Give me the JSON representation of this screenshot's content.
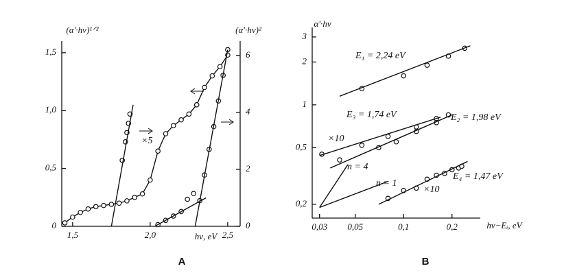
{
  "chart_data": [
    {
      "type": "line",
      "title": "A",
      "xlabel": "hν, eV",
      "ylabel": "(α′·hν)¹ᐟ²",
      "y2label": "(α′·hν)²",
      "xlim": [
        1.43,
        2.58
      ],
      "ylim": [
        0,
        1.6
      ],
      "y2lim": [
        0,
        6.5
      ],
      "xticks": [
        {
          "value": 1.5,
          "label": "1,5"
        },
        {
          "value": 2.0,
          "label": "2,0"
        },
        {
          "value": 2.5,
          "label": "2,5"
        }
      ],
      "yticks": [
        0,
        {
          "value": 0.5,
          "label": "0,5"
        },
        {
          "value": 1.0,
          "label": "1,0"
        },
        {
          "value": 1.5,
          "label": "1,5"
        }
      ],
      "y2ticks": [
        0,
        2,
        4,
        6
      ],
      "annotations": [
        "×5"
      ],
      "series": [
        {
          "color": "#111",
          "markers": true,
          "line": true,
          "x": [
            1.45,
            1.5,
            1.55,
            1.6,
            1.65,
            1.7,
            1.75,
            1.8,
            1.85,
            1.9,
            1.95,
            2.0,
            2.05,
            2.1,
            2.15,
            2.2,
            2.25,
            2.3,
            2.35,
            2.4,
            2.45,
            2.5
          ],
          "values": [
            0.03,
            0.08,
            0.12,
            0.15,
            0.17,
            0.18,
            0.19,
            0.2,
            0.22,
            0.25,
            0.28,
            0.4,
            0.65,
            0.8,
            0.87,
            0.92,
            0.97,
            1.05,
            1.2,
            1.3,
            1.38,
            1.48
          ]
        },
        {
          "color": "#111",
          "markers": true,
          "line": false,
          "x": [
            1.82,
            1.84,
            1.85,
            1.86,
            1.87
          ],
          "values": [
            0.57,
            0.73,
            0.81,
            0.89,
            0.97
          ]
        },
        {
          "color": "#111",
          "markers": false,
          "line": true,
          "x": [
            1.75,
            1.89
          ],
          "values": [
            0,
            1.05
          ]
        },
        {
          "color": "#111",
          "markers": true,
          "line": false,
          "axis": "y2",
          "x": [
            2.32,
            2.35,
            2.38,
            2.41,
            2.44,
            2.47,
            2.5
          ],
          "values": [
            0.9,
            1.8,
            2.7,
            3.5,
            4.4,
            5.3,
            6.2
          ]
        },
        {
          "color": "#111",
          "markers": false,
          "line": true,
          "axis": "y2",
          "x": [
            2.29,
            2.5
          ],
          "values": [
            0,
            6.2
          ]
        },
        {
          "color": "#111",
          "markers": true,
          "line": false,
          "axis": "y2",
          "x": [
            2.05,
            2.1,
            2.15,
            2.2,
            2.24,
            2.28
          ],
          "values": [
            0.06,
            0.21,
            0.36,
            0.52,
            0.95,
            1.15
          ]
        },
        {
          "color": "#111",
          "markers": false,
          "line": true,
          "axis": "y2",
          "x": [
            2.03,
            2.36
          ],
          "values": [
            0,
            1.0
          ]
        }
      ]
    },
    {
      "type": "line",
      "title": "B",
      "xlabel": "hν−Eᵢ, eV",
      "ylabel": "α′·hν",
      "xscale": "log",
      "yscale": "log",
      "xlim": [
        0.027,
        0.3
      ],
      "ylim": [
        0.16,
        3.5
      ],
      "xticks": [
        {
          "value": 0.03,
          "label": "0,03"
        },
        {
          "value": 0.05,
          "label": "0,05"
        },
        {
          "value": 0.1,
          "label": "0,1"
        },
        {
          "value": 0.2,
          "label": "0,2"
        }
      ],
      "yticks": [
        {
          "value": 0.2,
          "label": "0,2"
        },
        {
          "value": 0.5,
          "label": "0,5"
        },
        1,
        2,
        3
      ],
      "annotations": [
        "E₁ = 2,24 eV",
        "E₃ = 1,74 eV",
        "E₂ = 1,98 eV",
        "E₄ = 1,47 eV",
        "×10",
        "×10",
        "n = 4",
        "n = 1"
      ],
      "series": [
        {
          "color": "#111",
          "markers": true,
          "line": false,
          "x": [
            0.055,
            0.1,
            0.14,
            0.19,
            0.24
          ],
          "values": [
            1.3,
            1.6,
            1.9,
            2.2,
            2.5
          ]
        },
        {
          "color": "#111",
          "markers": false,
          "line": true,
          "x": [
            0.04,
            0.26
          ],
          "values": [
            1.15,
            2.6
          ]
        },
        {
          "color": "#111",
          "markers": true,
          "line": false,
          "x": [
            0.031,
            0.055,
            0.08,
            0.12,
            0.16
          ],
          "values": [
            0.45,
            0.52,
            0.6,
            0.7,
            0.8
          ]
        },
        {
          "color": "#111",
          "markers": false,
          "line": true,
          "x": [
            0.03,
            0.17
          ],
          "values": [
            0.44,
            0.82
          ]
        },
        {
          "color": "#111",
          "markers": true,
          "line": false,
          "x": [
            0.04,
            0.07,
            0.09,
            0.12,
            0.16,
            0.19
          ],
          "values": [
            0.41,
            0.5,
            0.55,
            0.65,
            0.75,
            0.85
          ]
        },
        {
          "color": "#111",
          "markers": false,
          "line": true,
          "x": [
            0.035,
            0.2
          ],
          "values": [
            0.36,
            0.85
          ]
        },
        {
          "color": "#111",
          "markers": true,
          "line": false,
          "x": [
            0.08,
            0.1,
            0.12,
            0.14,
            0.16,
            0.18,
            0.2,
            0.22,
            0.23
          ],
          "values": [
            0.22,
            0.25,
            0.26,
            0.3,
            0.32,
            0.33,
            0.35,
            0.36,
            0.37
          ]
        },
        {
          "color": "#111",
          "markers": false,
          "line": true,
          "x": [
            0.07,
            0.25
          ],
          "values": [
            0.2,
            0.4
          ]
        },
        {
          "color": "#111",
          "markers": false,
          "line": true,
          "x": [
            0.03,
            0.045
          ],
          "values": [
            0.19,
            0.38
          ]
        },
        {
          "color": "#111",
          "markers": false,
          "line": true,
          "x": [
            0.03,
            0.08
          ],
          "values": [
            0.19,
            0.29
          ]
        }
      ]
    }
  ]
}
